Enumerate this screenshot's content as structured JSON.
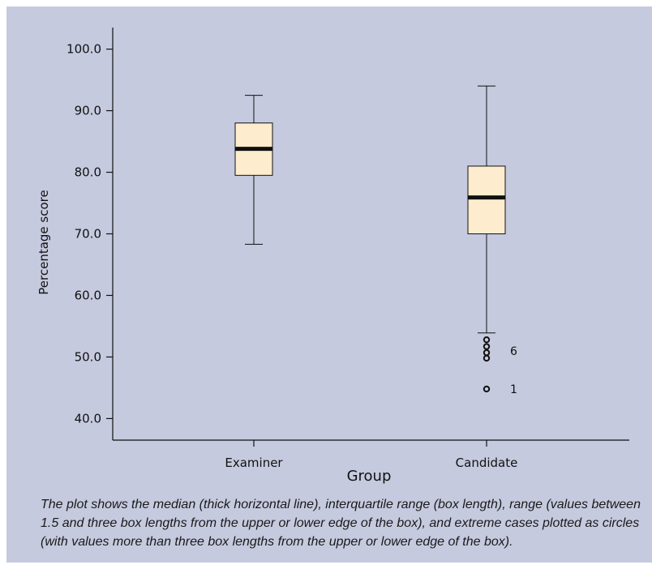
{
  "chart_data": {
    "type": "box",
    "title": "",
    "xlabel": "Group",
    "ylabel": "Percentage score",
    "ylim": [
      36.5,
      103.5
    ],
    "yticks": [
      40.0,
      50.0,
      60.0,
      70.0,
      80.0,
      90.0,
      100.0
    ],
    "ytick_labels": [
      "40.0",
      "50.0",
      "60.0",
      "70.0",
      "80.0",
      "90.0",
      "100.0"
    ],
    "grid": false,
    "categories": [
      "Examiner",
      "Candidate"
    ],
    "boxes": [
      {
        "name": "Examiner",
        "whisker_low": 68.3,
        "q1": 79.5,
        "median": 83.8,
        "q3": 88.0,
        "whisker_high": 92.5,
        "outliers": []
      },
      {
        "name": "Candidate",
        "whisker_low": 53.9,
        "q1": 70.0,
        "median": 75.9,
        "q3": 81.0,
        "whisker_high": 94.0,
        "outliers": [
          52.8,
          51.7,
          50.7,
          49.8,
          44.8
        ]
      }
    ],
    "annotations": [
      {
        "text": "6",
        "y": 51.0,
        "group": "Candidate"
      },
      {
        "text": "1",
        "y": 44.8,
        "group": "Candidate"
      }
    ],
    "colors": {
      "box_fill": "#fdeccd",
      "median": "#111111",
      "background": "#c6cadf"
    }
  },
  "caption": "The plot shows the median (thick horizontal line), interquartile range (box length), range (values between 1.5 and three box lengths from the upper or lower edge of the box), and extreme cases plotted as circles (with values more than three box lengths from the upper or lower edge of the box)."
}
